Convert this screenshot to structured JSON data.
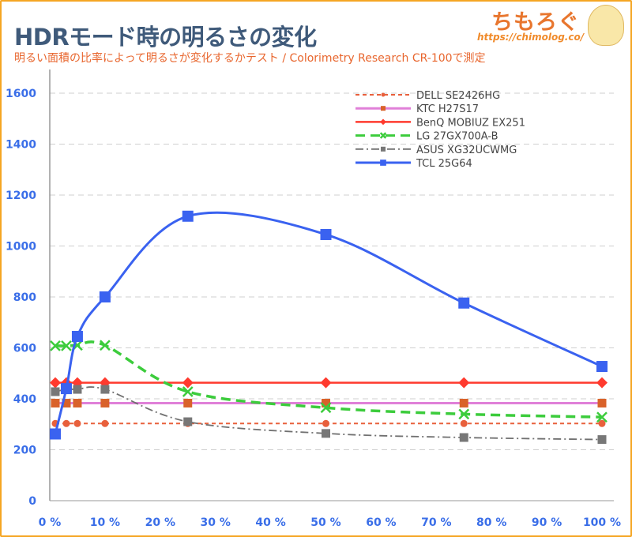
{
  "header": {
    "title": "HDRモード時の明るさの変化",
    "subtitle": "明るい面積の比率によって明るさが変化するかテスト / Colorimetry Research CR-100で測定",
    "logo_text": "ちもろぐ",
    "logo_url": "https://chimolog.co/"
  },
  "chart_data": {
    "type": "line",
    "title": "HDRモード時の明るさの変化",
    "xlabel": "",
    "ylabel": "",
    "x": [
      1,
      3,
      5,
      10,
      25,
      50,
      75,
      100
    ],
    "xlim": [
      0,
      100
    ],
    "ylim": [
      0,
      1600
    ],
    "x_ticks": [
      "0 %",
      "10 %",
      "20 %",
      "30 %",
      "40 %",
      "50 %",
      "60 %",
      "70 %",
      "80 %",
      "90 %",
      "100 %"
    ],
    "y_ticks": [
      "0",
      "200",
      "400",
      "600",
      "800",
      "1000",
      "1200",
      "1400",
      "1600"
    ],
    "grid": true,
    "legend_position": "top-right",
    "series": [
      {
        "name": "DELL SE2426HG",
        "color": "#e8603c",
        "dash": "5,4",
        "marker": "circle",
        "smooth": false,
        "values": [
          303,
          303,
          303,
          303,
          303,
          303,
          303,
          303
        ]
      },
      {
        "name": "KTC H27S17",
        "color": "#e080d8",
        "marker_color": "#d9622a",
        "dash": "",
        "marker": "square-small",
        "smooth": false,
        "values": [
          383,
          383,
          383,
          383,
          383,
          383,
          383,
          383
        ]
      },
      {
        "name": "BenQ MOBIUZ EX251",
        "color": "#ff3a2e",
        "dash": "",
        "marker": "diamond",
        "smooth": false,
        "values": [
          463,
          463,
          463,
          463,
          463,
          463,
          463,
          463
        ]
      },
      {
        "name": "LG 27GX700A-B",
        "color": "#3ccc3c",
        "dash": "12,7",
        "marker": "x",
        "smooth": true,
        "values": [
          608,
          608,
          610,
          610,
          428,
          365,
          340,
          328
        ]
      },
      {
        "name": "ASUS XG32UCWMG",
        "color": "#707070",
        "dash": "10,4,2,4",
        "marker": "square-gray",
        "smooth": true,
        "values": [
          428,
          437,
          437,
          437,
          310,
          264,
          248,
          240
        ]
      },
      {
        "name": "TCL 25G64",
        "color": "#3a62f0",
        "dash": "",
        "marker": "square",
        "smooth": true,
        "values": [
          262,
          440,
          645,
          800,
          1117,
          1045,
          776,
          527
        ]
      }
    ]
  }
}
